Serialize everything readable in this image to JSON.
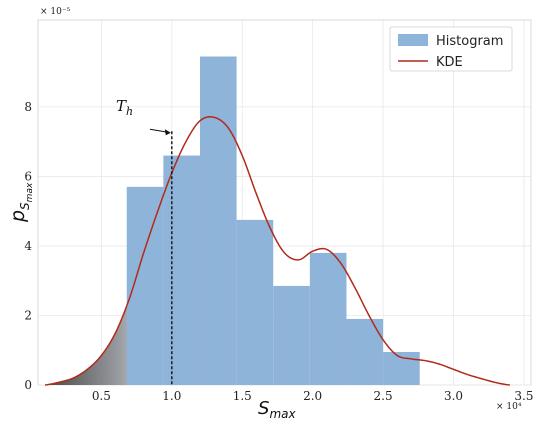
{
  "chart_data": {
    "type": "bar",
    "xlabel": "S",
    "xlabel_sub": "max",
    "ylabel": "p",
    "ylabel_sub1": "S",
    "ylabel_sub2": "max",
    "x_multiplier": "× 10⁴",
    "y_multiplier": "× 10⁻⁵",
    "xlim": [
      0.05,
      3.55
    ],
    "ylim": [
      0,
      10.5
    ],
    "xticks": [
      0.5,
      1.0,
      1.5,
      2.0,
      2.5,
      3.0,
      3.5
    ],
    "xtick_labels": [
      "0.5",
      "1.0",
      "1.5",
      "2.0",
      "2.5",
      "3.0",
      "3.5"
    ],
    "yticks": [
      0,
      2,
      4,
      6,
      8
    ],
    "ytick_labels": [
      "0",
      "2",
      "4",
      "6",
      "8"
    ],
    "grid": true,
    "legend_position": "top-right",
    "histogram": {
      "name": "Histogram",
      "color": "#8fb4d9",
      "bins": [
        {
          "x0": 0.68,
          "x1": 0.94,
          "value": 5.7
        },
        {
          "x0": 0.94,
          "x1": 1.2,
          "value": 6.6
        },
        {
          "x0": 1.2,
          "x1": 1.46,
          "value": 9.45
        },
        {
          "x0": 1.46,
          "x1": 1.72,
          "value": 4.75
        },
        {
          "x0": 1.72,
          "x1": 1.98,
          "value": 2.85
        },
        {
          "x0": 1.98,
          "x1": 2.24,
          "value": 3.8
        },
        {
          "x0": 2.24,
          "x1": 2.5,
          "value": 1.9
        },
        {
          "x0": 2.5,
          "x1": 2.76,
          "value": 0.95
        }
      ]
    },
    "kde": {
      "name": "KDE",
      "color": "#b22a1a",
      "x": [
        0.1,
        0.2,
        0.3,
        0.4,
        0.5,
        0.6,
        0.7,
        0.8,
        0.9,
        1.0,
        1.1,
        1.2,
        1.3,
        1.4,
        1.5,
        1.6,
        1.7,
        1.8,
        1.9,
        2.0,
        2.1,
        2.2,
        2.3,
        2.4,
        2.5,
        2.6,
        2.7,
        2.8,
        2.9,
        3.0,
        3.1,
        3.2,
        3.3,
        3.4
      ],
      "y": [
        0.0,
        0.08,
        0.2,
        0.45,
        0.85,
        1.5,
        2.5,
        3.8,
        5.0,
        6.1,
        7.0,
        7.6,
        7.7,
        7.4,
        6.6,
        5.5,
        4.5,
        3.8,
        3.6,
        3.85,
        3.9,
        3.5,
        2.8,
        2.0,
        1.3,
        0.85,
        0.75,
        0.7,
        0.6,
        0.45,
        0.3,
        0.18,
        0.07,
        0.0
      ]
    },
    "threshold": {
      "label": "T",
      "label_sub": "h",
      "x": 1.0,
      "y": 7.3
    },
    "shaded_region_until": 1.0
  }
}
